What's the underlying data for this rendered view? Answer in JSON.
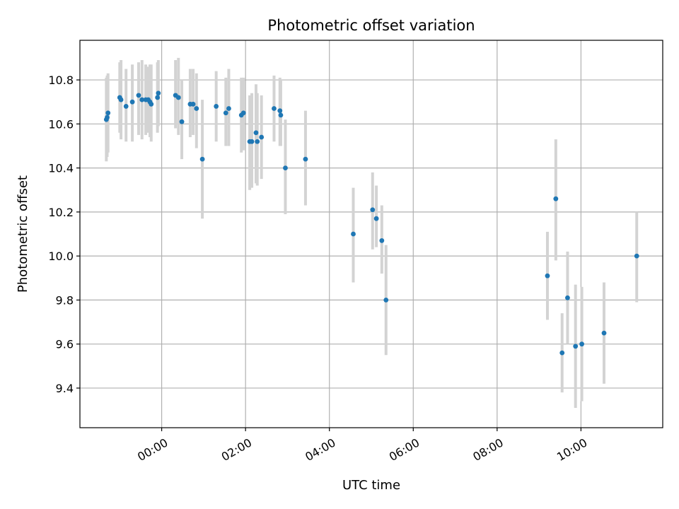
{
  "chart_data": {
    "type": "scatter",
    "title": "Photometric offset variation",
    "xlabel": "UTC time",
    "ylabel": "Photometric offset",
    "x_unit": "hours UTC",
    "xlim": [
      -1.95,
      11.95
    ],
    "ylim": [
      9.22,
      10.98
    ],
    "x_ticks": [
      {
        "value": 0,
        "label": "00:00"
      },
      {
        "value": 2,
        "label": "02:00"
      },
      {
        "value": 4,
        "label": "04:00"
      },
      {
        "value": 6,
        "label": "06:00"
      },
      {
        "value": 8,
        "label": "08:00"
      },
      {
        "value": 10,
        "label": "10:00"
      }
    ],
    "y_ticks": [
      {
        "value": 9.4,
        "label": "9.4"
      },
      {
        "value": 9.6,
        "label": "9.6"
      },
      {
        "value": 9.8,
        "label": "9.8"
      },
      {
        "value": 10.0,
        "label": "10.0"
      },
      {
        "value": 10.2,
        "label": "10.2"
      },
      {
        "value": 10.4,
        "label": "10.4"
      },
      {
        "value": 10.6,
        "label": "10.6"
      },
      {
        "value": 10.8,
        "label": "10.8"
      }
    ],
    "grid": true,
    "colors": {
      "points": "#1f77b4",
      "error_bars": "#d3d3d3",
      "grid": "#b0b0b0"
    },
    "points": [
      {
        "x": -1.32,
        "y": 10.62,
        "lo": 10.43,
        "hi": 10.81
      },
      {
        "x": -1.3,
        "y": 10.63,
        "lo": 10.45,
        "hi": 10.82
      },
      {
        "x": -1.28,
        "y": 10.65,
        "lo": 10.47,
        "hi": 10.83
      },
      {
        "x": -1.0,
        "y": 10.72,
        "lo": 10.56,
        "hi": 10.88
      },
      {
        "x": -0.97,
        "y": 10.71,
        "lo": 10.53,
        "hi": 10.89
      },
      {
        "x": -0.85,
        "y": 10.68,
        "lo": 10.52,
        "hi": 10.85
      },
      {
        "x": -0.7,
        "y": 10.7,
        "lo": 10.52,
        "hi": 10.87
      },
      {
        "x": -0.55,
        "y": 10.73,
        "lo": 10.55,
        "hi": 10.88
      },
      {
        "x": -0.47,
        "y": 10.71,
        "lo": 10.53,
        "hi": 10.89
      },
      {
        "x": -0.38,
        "y": 10.71,
        "lo": 10.55,
        "hi": 10.87
      },
      {
        "x": -0.32,
        "y": 10.71,
        "lo": 10.56,
        "hi": 10.86
      },
      {
        "x": -0.28,
        "y": 10.7,
        "lo": 10.54,
        "hi": 10.87
      },
      {
        "x": -0.25,
        "y": 10.69,
        "lo": 10.52,
        "hi": 10.87
      },
      {
        "x": -0.1,
        "y": 10.72,
        "lo": 10.56,
        "hi": 10.88
      },
      {
        "x": -0.08,
        "y": 10.74,
        "lo": 10.59,
        "hi": 10.89
      },
      {
        "x": 0.33,
        "y": 10.73,
        "lo": 10.58,
        "hi": 10.89
      },
      {
        "x": 0.4,
        "y": 10.72,
        "lo": 10.55,
        "hi": 10.9
      },
      {
        "x": 0.48,
        "y": 10.61,
        "lo": 10.44,
        "hi": 10.8
      },
      {
        "x": 0.68,
        "y": 10.69,
        "lo": 10.54,
        "hi": 10.85
      },
      {
        "x": 0.75,
        "y": 10.69,
        "lo": 10.55,
        "hi": 10.85
      },
      {
        "x": 0.83,
        "y": 10.67,
        "lo": 10.49,
        "hi": 10.83
      },
      {
        "x": 0.97,
        "y": 10.44,
        "lo": 10.17,
        "hi": 10.71
      },
      {
        "x": 1.3,
        "y": 10.68,
        "lo": 10.52,
        "hi": 10.84
      },
      {
        "x": 1.53,
        "y": 10.65,
        "lo": 10.5,
        "hi": 10.81
      },
      {
        "x": 1.6,
        "y": 10.67,
        "lo": 10.5,
        "hi": 10.85
      },
      {
        "x": 1.9,
        "y": 10.64,
        "lo": 10.47,
        "hi": 10.81
      },
      {
        "x": 1.95,
        "y": 10.65,
        "lo": 10.48,
        "hi": 10.81
      },
      {
        "x": 2.1,
        "y": 10.52,
        "lo": 10.3,
        "hi": 10.73
      },
      {
        "x": 2.15,
        "y": 10.52,
        "lo": 10.31,
        "hi": 10.74
      },
      {
        "x": 2.25,
        "y": 10.56,
        "lo": 10.33,
        "hi": 10.78
      },
      {
        "x": 2.28,
        "y": 10.52,
        "lo": 10.32,
        "hi": 10.74
      },
      {
        "x": 2.38,
        "y": 10.54,
        "lo": 10.35,
        "hi": 10.73
      },
      {
        "x": 2.68,
        "y": 10.67,
        "lo": 10.52,
        "hi": 10.82
      },
      {
        "x": 2.82,
        "y": 10.66,
        "lo": 10.5,
        "hi": 10.81
      },
      {
        "x": 2.84,
        "y": 10.64,
        "lo": 10.5,
        "hi": 10.8
      },
      {
        "x": 2.95,
        "y": 10.4,
        "lo": 10.19,
        "hi": 10.62
      },
      {
        "x": 3.43,
        "y": 10.44,
        "lo": 10.23,
        "hi": 10.66
      },
      {
        "x": 4.57,
        "y": 10.1,
        "lo": 9.88,
        "hi": 10.31
      },
      {
        "x": 5.03,
        "y": 10.21,
        "lo": 10.03,
        "hi": 10.38
      },
      {
        "x": 5.12,
        "y": 10.17,
        "lo": 10.04,
        "hi": 10.32
      },
      {
        "x": 5.25,
        "y": 10.07,
        "lo": 9.92,
        "hi": 10.23
      },
      {
        "x": 5.35,
        "y": 9.8,
        "lo": 9.55,
        "hi": 10.05
      },
      {
        "x": 9.2,
        "y": 9.91,
        "lo": 9.71,
        "hi": 10.11
      },
      {
        "x": 9.4,
        "y": 10.26,
        "lo": 9.98,
        "hi": 10.53
      },
      {
        "x": 9.55,
        "y": 9.56,
        "lo": 9.38,
        "hi": 9.74
      },
      {
        "x": 9.68,
        "y": 9.81,
        "lo": 9.6,
        "hi": 10.02
      },
      {
        "x": 9.87,
        "y": 9.59,
        "lo": 9.31,
        "hi": 9.87
      },
      {
        "x": 10.02,
        "y": 9.6,
        "lo": 9.34,
        "hi": 9.86
      },
      {
        "x": 10.55,
        "y": 9.65,
        "lo": 9.42,
        "hi": 9.88
      },
      {
        "x": 11.33,
        "y": 10.0,
        "lo": 9.79,
        "hi": 10.2
      }
    ]
  }
}
